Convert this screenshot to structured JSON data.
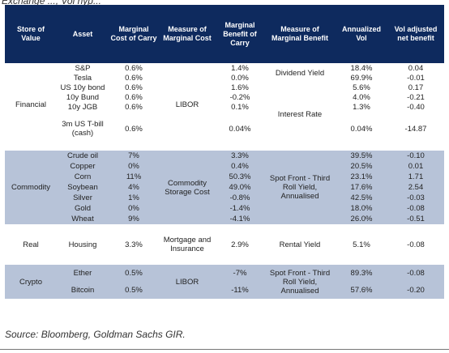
{
  "caption": "Exchange ..., Vol hyp...",
  "headers": [
    "Store of Value",
    "Asset",
    "Marginal Cost of Carry",
    "Measure of Marginal Cost",
    "Marginal Benefit of Carry",
    "Measure of Marginal Benefit",
    "Annualized Vol",
    "Vol adjusted net benefit"
  ],
  "financial": {
    "store": "Financial",
    "cost_measure": "LIBOR",
    "benefit_measure_a": "Dividend Yield",
    "benefit_measure_b": "Interest Rate",
    "rows": [
      {
        "asset": "S&P",
        "cost": "0.6%",
        "benefit": "1.4%",
        "vol": "18.4%",
        "net": "0.04"
      },
      {
        "asset": "Tesla",
        "cost": "0.6%",
        "benefit": "0.0%",
        "vol": "69.9%",
        "net": "-0.01"
      },
      {
        "asset": "US 10y bond",
        "cost": "0.6%",
        "benefit": "1.6%",
        "vol": "5.6%",
        "net": "0.17"
      },
      {
        "asset": "10y Bund",
        "cost": "0.6%",
        "benefit": "-0.2%",
        "vol": "4.0%",
        "net": "-0.21"
      },
      {
        "asset": "10y JGB",
        "cost": "0.6%",
        "benefit": "0.1%",
        "vol": "1.3%",
        "net": "-0.40"
      },
      {
        "asset": "3m US T-bill (cash)",
        "cost": "0.6%",
        "benefit": "0.04%",
        "vol": "0.04%",
        "net": "-14.87"
      }
    ]
  },
  "commodity": {
    "store": "Commodity",
    "cost_measure": "Commodity Storage Cost",
    "benefit_measure": "Spot Front - Third Roll Yield, Annualised",
    "rows": [
      {
        "asset": "Crude oil",
        "cost": "7%",
        "benefit": "3.3%",
        "vol": "39.5%",
        "net": "-0.10"
      },
      {
        "asset": "Copper",
        "cost": "0%",
        "benefit": "0.4%",
        "vol": "20.5%",
        "net": "0.01"
      },
      {
        "asset": "Corn",
        "cost": "11%",
        "benefit": "50.3%",
        "vol": "23.1%",
        "net": "1.71"
      },
      {
        "asset": "Soybean",
        "cost": "4%",
        "benefit": "49.0%",
        "vol": "17.6%",
        "net": "2.54"
      },
      {
        "asset": "Silver",
        "cost": "1%",
        "benefit": "-0.8%",
        "vol": "42.5%",
        "net": "-0.03"
      },
      {
        "asset": "Gold",
        "cost": "0%",
        "benefit": "-1.4%",
        "vol": "18.0%",
        "net": "-0.08"
      },
      {
        "asset": "Wheat",
        "cost": "9%",
        "benefit": "-4.1%",
        "vol": "26.0%",
        "net": "-0.51"
      }
    ]
  },
  "real": {
    "store": "Real",
    "asset": "Housing",
    "cost": "3.3%",
    "cost_measure": "Mortgage and Insurance",
    "benefit": "2.9%",
    "benefit_measure": "Rental Yield",
    "vol": "5.1%",
    "net": "-0.08"
  },
  "crypto": {
    "store": "Crypto",
    "cost_measure": "LIBOR",
    "benefit_measure": "Spot Front - Third Roll Yield, Annualised",
    "rows": [
      {
        "asset": "Ether",
        "cost": "0.5%",
        "benefit": "-7%",
        "vol": "89.3%",
        "net": "-0.08"
      },
      {
        "asset": "Bitcoin",
        "cost": "0.5%",
        "benefit": "-11%",
        "vol": "57.6%",
        "net": "-0.20"
      }
    ]
  },
  "source": "Source: Bloomberg, Goldman Sachs GIR."
}
